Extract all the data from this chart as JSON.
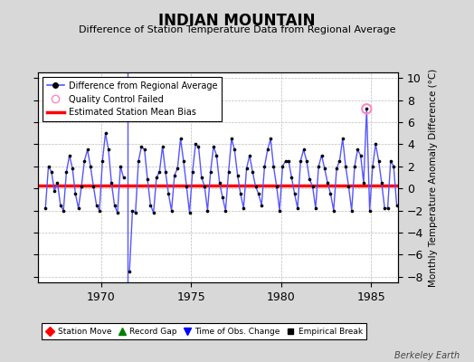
{
  "title": "INDIAN MOUNTAIN",
  "subtitle": "Difference of Station Temperature Data from Regional Average",
  "ylabel_right": "Monthly Temperature Anomaly Difference (°C)",
  "credit": "Berkeley Earth",
  "xlim": [
    1966.5,
    1986.5
  ],
  "ylim": [
    -8.5,
    10.5
  ],
  "yticks": [
    -8,
    -6,
    -4,
    -2,
    0,
    2,
    4,
    6,
    8,
    10
  ],
  "xticks": [
    1970,
    1975,
    1980,
    1985
  ],
  "bias_value": 0.3,
  "gap_x": 1971.5,
  "qc_fail_x": 1984.75,
  "qc_fail_y": 7.2,
  "line_color": "#5555ff",
  "dot_color": "#000000",
  "bias_color": "#ff0000",
  "bg_color": "#d8d8d8",
  "plot_bg_color": "#ffffff",
  "data_x": [
    1966.917,
    1967.083,
    1967.25,
    1967.417,
    1967.583,
    1967.75,
    1967.917,
    1968.083,
    1968.25,
    1968.417,
    1968.583,
    1968.75,
    1968.917,
    1969.083,
    1969.25,
    1969.417,
    1969.583,
    1969.75,
    1969.917,
    1970.083,
    1970.25,
    1970.417,
    1970.583,
    1970.75,
    1970.917,
    1971.083,
    1971.25,
    1971.583,
    1971.75,
    1971.917,
    1972.083,
    1972.25,
    1972.417,
    1972.583,
    1972.75,
    1972.917,
    1973.083,
    1973.25,
    1973.417,
    1973.583,
    1973.75,
    1973.917,
    1974.083,
    1974.25,
    1974.417,
    1974.583,
    1974.75,
    1974.917,
    1975.083,
    1975.25,
    1975.417,
    1975.583,
    1975.75,
    1975.917,
    1976.083,
    1976.25,
    1976.417,
    1976.583,
    1976.75,
    1976.917,
    1977.083,
    1977.25,
    1977.417,
    1977.583,
    1977.75,
    1977.917,
    1978.083,
    1978.25,
    1978.417,
    1978.583,
    1978.75,
    1978.917,
    1979.083,
    1979.25,
    1979.417,
    1979.583,
    1979.75,
    1979.917,
    1980.083,
    1980.25,
    1980.417,
    1980.583,
    1980.75,
    1980.917,
    1981.083,
    1981.25,
    1981.417,
    1981.583,
    1981.75,
    1981.917,
    1982.083,
    1982.25,
    1982.417,
    1982.583,
    1982.75,
    1982.917,
    1983.083,
    1983.25,
    1983.417,
    1983.583,
    1983.75,
    1983.917,
    1984.083,
    1984.25,
    1984.417,
    1984.583,
    1984.75,
    1984.917,
    1985.083,
    1985.25,
    1985.417,
    1985.583,
    1985.75,
    1985.917,
    1986.083,
    1986.25,
    1986.417
  ],
  "data_y": [
    -1.8,
    2.0,
    1.5,
    -0.2,
    0.5,
    -1.5,
    -2.0,
    1.5,
    3.0,
    1.8,
    -0.5,
    -1.8,
    0.2,
    2.5,
    3.5,
    2.0,
    0.2,
    -1.5,
    -2.0,
    2.5,
    5.0,
    3.5,
    0.5,
    -1.5,
    -2.2,
    2.0,
    1.0,
    -7.5,
    -2.0,
    -2.2,
    2.5,
    3.8,
    3.5,
    0.8,
    -1.5,
    -2.2,
    1.0,
    1.5,
    3.8,
    1.5,
    -0.5,
    -2.0,
    1.2,
    1.8,
    4.5,
    2.5,
    0.2,
    -2.2,
    1.5,
    4.0,
    3.8,
    1.0,
    0.2,
    -2.0,
    1.5,
    3.8,
    3.0,
    0.5,
    -0.8,
    -2.0,
    1.5,
    4.5,
    3.5,
    1.2,
    -0.5,
    -1.8,
    1.8,
    3.0,
    1.5,
    0.2,
    -0.5,
    -1.5,
    2.0,
    3.5,
    4.5,
    2.0,
    0.2,
    -2.0,
    2.0,
    2.5,
    2.5,
    1.0,
    -0.5,
    -1.8,
    2.5,
    3.5,
    2.5,
    0.8,
    0.2,
    -1.8,
    2.0,
    3.0,
    1.8,
    0.5,
    -0.5,
    -2.0,
    1.8,
    2.5,
    4.5,
    2.0,
    0.2,
    -2.0,
    2.0,
    3.5,
    3.0,
    0.5,
    7.2,
    -2.0,
    2.0,
    4.0,
    2.5,
    0.5,
    -1.8,
    -1.8,
    2.5,
    2.0,
    -1.5
  ]
}
